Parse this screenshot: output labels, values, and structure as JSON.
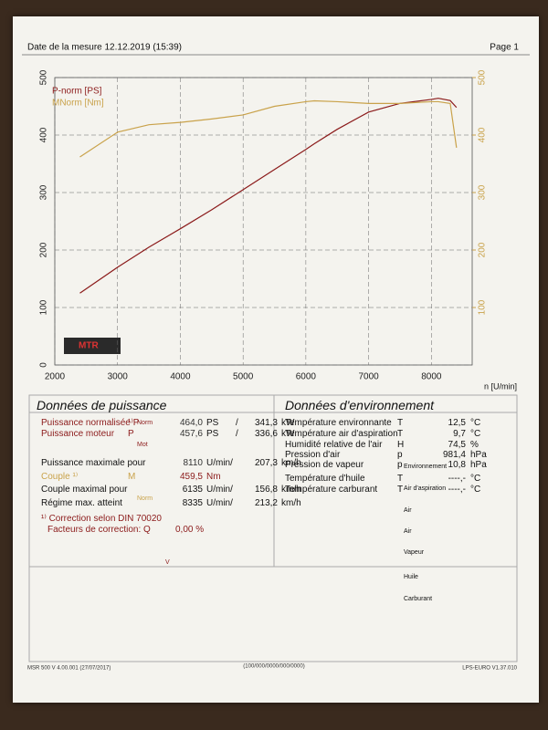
{
  "header": {
    "date": "Date de la mesure 12.12.2019 (15:39)",
    "page": "Page 1"
  },
  "chart_data": {
    "type": "line",
    "logo": "MTR",
    "x_label": "n [U/min]",
    "xlim": [
      2000,
      8650
    ],
    "xticks": [
      2000,
      3000,
      4000,
      5000,
      6000,
      7000,
      8000
    ],
    "ylim": [
      0,
      500
    ],
    "yticks": [
      0,
      100,
      200,
      300,
      400,
      500
    ],
    "y2lim": [
      0,
      500
    ],
    "y2ticks": [
      100,
      200,
      300,
      400,
      500
    ],
    "grid": true,
    "x": [
      2400,
      3000,
      3500,
      4000,
      4500,
      5000,
      5500,
      6000,
      6135,
      6500,
      7000,
      7500,
      8000,
      8110,
      8300,
      8400
    ],
    "series": [
      {
        "name": "P-norm [PS]",
        "color": "#8b1a1a",
        "values": [
          125,
          170,
          205,
          237,
          270,
          305,
          340,
          375,
          385,
          410,
          440,
          455,
          462,
          464,
          460,
          448
        ]
      },
      {
        "name": "MNorm [Nm]",
        "color": "#c9a24a",
        "axis": "y2",
        "values": [
          362,
          405,
          418,
          422,
          428,
          435,
          450,
          458,
          459.5,
          458,
          455,
          455,
          458,
          458,
          455,
          378
        ]
      }
    ]
  },
  "power": {
    "title": "Données de puissance",
    "color": "#8b1a1a",
    "rows": [
      {
        "label": "Puissance normalisée",
        "sym": "¹⁾P",
        "sub": "Norm",
        "v1": "464,0",
        "u1": "PS",
        "sep": "/",
        "v2": "341,3",
        "u2": "kW"
      },
      {
        "label": "Puissance moteur",
        "sym": "P",
        "sub": "Mot",
        "v1": "457,6",
        "u1": "PS",
        "sep": "/",
        "v2": "336,6",
        "u2": "kW"
      },
      {
        "label": "Puissance maximale pour",
        "v1": "8110",
        "u1": "U/min/",
        "v2": "207,3",
        "u2": "km/h"
      },
      {
        "label": "Couple ¹⁾",
        "sym": "M",
        "sub": "Norm",
        "v1": "459,5",
        "u1": "Nm"
      },
      {
        "label": "Couple maximal pour",
        "v1": "6135",
        "u1": "U/min/",
        "v2": "156,8",
        "u2": "km/h"
      },
      {
        "label": "Régime max. atteint",
        "v1": "8335",
        "u1": "U/min/",
        "v2": "213,2",
        "u2": "km/h"
      }
    ],
    "note": "¹⁾ Correction selon DIN 70020",
    "factor": "Facteurs de correction: Q",
    "factor_sub": "V",
    "factor_value": "0,00 %"
  },
  "environment": {
    "title": "Données d'environnement",
    "rows": [
      {
        "label": "Température environnante",
        "sym": "T",
        "sub": "Environnement",
        "value": "12,5",
        "unit": "°C"
      },
      {
        "label": "Température air d'aspiration",
        "sym": "T",
        "sub": "Air d'aspiration",
        "value": "9,7",
        "unit": "°C"
      },
      {
        "label": "Humidité relative de l'air",
        "sym": "H",
        "sub": "Air",
        "value": "74,5",
        "unit": "%"
      },
      {
        "label": "Pression d'air",
        "sym": "p",
        "sub": "Air",
        "value": "981,4",
        "unit": "hPa"
      },
      {
        "label": "Pression de vapeur",
        "sym": "p",
        "sub": "Vapeur",
        "value": "10,8",
        "unit": "hPa"
      },
      {
        "label": "Température d'huile",
        "sym": "T",
        "sub": "Huile",
        "value": "----,-",
        "unit": "°C"
      },
      {
        "label": "Température carburant",
        "sym": "T",
        "sub": "Carburant",
        "value": "----,-",
        "unit": "°C"
      }
    ]
  },
  "footer": {
    "software": "MSR 500 V 4.00.001 (27/07/2017)",
    "code": "(100/000/0000/000/0000)",
    "version": "LPS-EURO V1.37.010"
  }
}
